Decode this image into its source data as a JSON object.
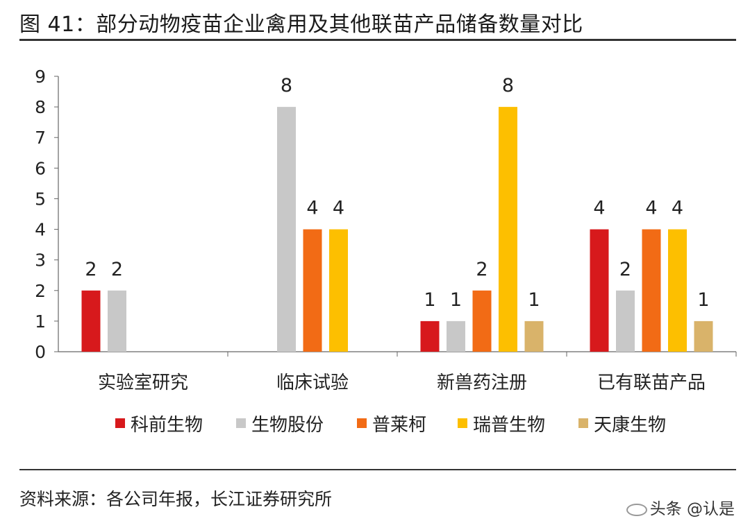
{
  "header": {
    "title": "图 41：部分动物疫苗企业禽用及其他联苗产品储备数量对比"
  },
  "chart_data": {
    "type": "bar",
    "categories": [
      "实验室研究",
      "临床试验",
      "新兽药注册",
      "已有联苗产品"
    ],
    "series": [
      {
        "name": "科前生物",
        "color": "#d7191c",
        "values": [
          2,
          null,
          1,
          4
        ]
      },
      {
        "name": "生物股份",
        "color": "#c8c8c8",
        "values": [
          2,
          8,
          1,
          2
        ]
      },
      {
        "name": "普莱柯",
        "color": "#f26b15",
        "values": [
          null,
          4,
          2,
          4
        ]
      },
      {
        "name": "瑞普生物",
        "color": "#fdbf00",
        "values": [
          null,
          4,
          8,
          4
        ]
      },
      {
        "name": "天康生物",
        "color": "#d9b36a",
        "values": [
          null,
          null,
          1,
          1
        ]
      }
    ],
    "ylim": [
      0,
      9
    ],
    "yticks": [
      0,
      1,
      2,
      3,
      4,
      5,
      6,
      7,
      8,
      9
    ],
    "legend_position": "bottom",
    "grid": false,
    "data_labels": true
  },
  "footer": {
    "source": "资料来源：各公司年报，长江证券研究所",
    "watermark": "头条 @认是"
  }
}
